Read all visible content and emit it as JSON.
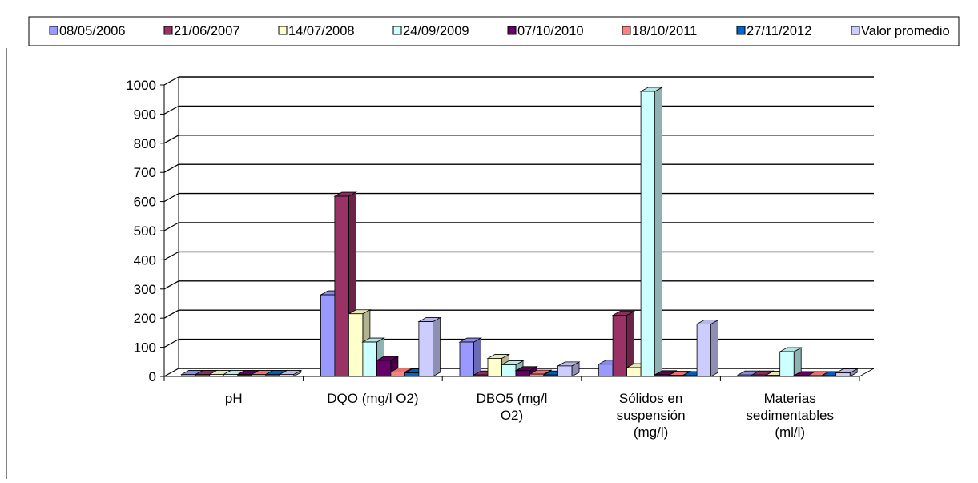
{
  "chart_data": {
    "type": "bar",
    "style": "3d-clustered",
    "categories": [
      [
        "pH"
      ],
      [
        "DQO (mg/l O2)"
      ],
      [
        "DBO5  (mg/l",
        "O2)"
      ],
      [
        "Sólidos en",
        "suspensión",
        "(mg/l)"
      ],
      [
        "Materias",
        "sedimentables",
        "(ml/l)"
      ]
    ],
    "series": [
      {
        "name": "08/05/2006",
        "color": "#9999ff",
        "values": [
          7,
          280,
          118,
          42,
          5
        ]
      },
      {
        "name": "21/06/2007",
        "color": "#993366",
        "values": [
          7,
          618,
          5,
          210,
          5
        ]
      },
      {
        "name": "14/07/2008",
        "color": "#ffffcc",
        "values": [
          7,
          215,
          62,
          30,
          4
        ]
      },
      {
        "name": "24/09/2009",
        "color": "#ccffff",
        "values": [
          7,
          118,
          40,
          978,
          85
        ]
      },
      {
        "name": "07/10/2010",
        "color": "#660066",
        "values": [
          7,
          55,
          20,
          6,
          3
        ]
      },
      {
        "name": "18/10/2011",
        "color": "#ff8080",
        "values": [
          7,
          15,
          8,
          4,
          3
        ]
      },
      {
        "name": "27/11/2012",
        "color": "#0066cc",
        "values": [
          7,
          12,
          5,
          3,
          3
        ]
      },
      {
        "name": "Valor promedio",
        "color": "#ccccff",
        "values": [
          7,
          188,
          36,
          180,
          12
        ]
      }
    ],
    "yticks": [
      0,
      100,
      200,
      300,
      400,
      500,
      600,
      700,
      800,
      900,
      1000
    ],
    "ylim": [
      0,
      1000
    ],
    "grid": true,
    "legend": "top"
  }
}
